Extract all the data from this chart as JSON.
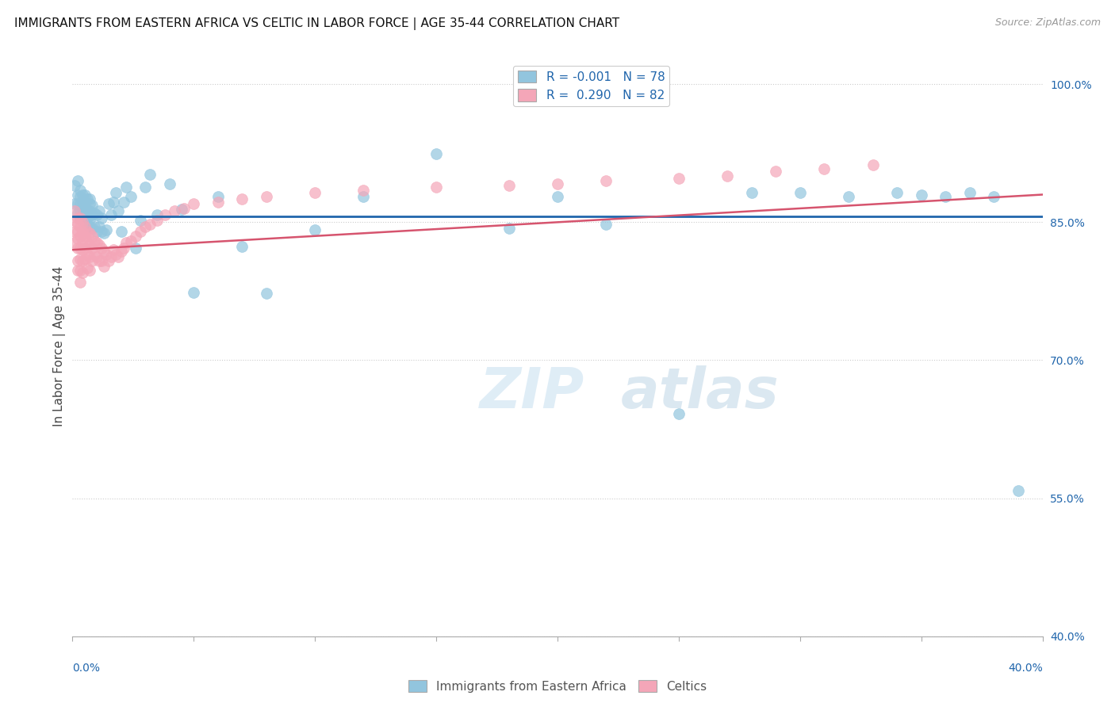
{
  "title": "IMMIGRANTS FROM EASTERN AFRICA VS CELTIC IN LABOR FORCE | AGE 35-44 CORRELATION CHART",
  "source": "Source: ZipAtlas.com",
  "ylabel": "In Labor Force | Age 35-44",
  "ylabel_right_ticks": [
    "100.0%",
    "85.0%",
    "70.0%",
    "55.0%",
    "40.0%"
  ],
  "ylabel_right_vals": [
    1.0,
    0.85,
    0.7,
    0.55,
    0.4
  ],
  "xmin": 0.0,
  "xmax": 0.4,
  "ymin": 0.4,
  "ymax": 1.03,
  "legend_r_blue": "-0.001",
  "legend_n_blue": "78",
  "legend_r_pink": "0.290",
  "legend_n_pink": "82",
  "blue_color": "#92c5de",
  "pink_color": "#f4a6b8",
  "blue_line_color": "#2166ac",
  "pink_line_color": "#d6546e",
  "watermark_zip": "ZIP",
  "watermark_atlas": "atlas",
  "blue_scatter_x": [
    0.001,
    0.001,
    0.002,
    0.002,
    0.002,
    0.002,
    0.003,
    0.003,
    0.003,
    0.003,
    0.003,
    0.004,
    0.004,
    0.004,
    0.004,
    0.005,
    0.005,
    0.005,
    0.005,
    0.005,
    0.006,
    0.006,
    0.006,
    0.006,
    0.007,
    0.007,
    0.007,
    0.007,
    0.007,
    0.008,
    0.008,
    0.008,
    0.009,
    0.009,
    0.01,
    0.01,
    0.011,
    0.011,
    0.012,
    0.012,
    0.013,
    0.014,
    0.015,
    0.016,
    0.017,
    0.018,
    0.019,
    0.02,
    0.021,
    0.022,
    0.024,
    0.026,
    0.028,
    0.03,
    0.032,
    0.035,
    0.04,
    0.045,
    0.05,
    0.06,
    0.07,
    0.08,
    0.1,
    0.12,
    0.15,
    0.18,
    0.2,
    0.22,
    0.25,
    0.28,
    0.3,
    0.32,
    0.34,
    0.35,
    0.36,
    0.37,
    0.38,
    0.39
  ],
  "blue_scatter_y": [
    0.87,
    0.89,
    0.86,
    0.87,
    0.88,
    0.895,
    0.855,
    0.862,
    0.87,
    0.878,
    0.885,
    0.858,
    0.865,
    0.873,
    0.88,
    0.85,
    0.858,
    0.865,
    0.872,
    0.88,
    0.848,
    0.855,
    0.863,
    0.875,
    0.845,
    0.853,
    0.862,
    0.87,
    0.875,
    0.843,
    0.858,
    0.868,
    0.845,
    0.86,
    0.84,
    0.858,
    0.845,
    0.862,
    0.84,
    0.855,
    0.838,
    0.842,
    0.87,
    0.858,
    0.872,
    0.882,
    0.862,
    0.84,
    0.872,
    0.888,
    0.878,
    0.822,
    0.852,
    0.888,
    0.902,
    0.858,
    0.892,
    0.864,
    0.774,
    0.878,
    0.824,
    0.773,
    0.842,
    0.878,
    0.924,
    0.843,
    0.878,
    0.848,
    0.642,
    0.882,
    0.882,
    0.878,
    0.882,
    0.88,
    0.878,
    0.882,
    0.878,
    0.558
  ],
  "pink_scatter_x": [
    0.001,
    0.001,
    0.001,
    0.001,
    0.002,
    0.002,
    0.002,
    0.002,
    0.002,
    0.002,
    0.002,
    0.003,
    0.003,
    0.003,
    0.003,
    0.003,
    0.003,
    0.003,
    0.004,
    0.004,
    0.004,
    0.004,
    0.004,
    0.004,
    0.005,
    0.005,
    0.005,
    0.005,
    0.006,
    0.006,
    0.006,
    0.006,
    0.007,
    0.007,
    0.007,
    0.007,
    0.008,
    0.008,
    0.008,
    0.009,
    0.009,
    0.01,
    0.01,
    0.011,
    0.011,
    0.012,
    0.012,
    0.013,
    0.013,
    0.014,
    0.015,
    0.016,
    0.017,
    0.018,
    0.019,
    0.02,
    0.021,
    0.022,
    0.024,
    0.026,
    0.028,
    0.03,
    0.032,
    0.035,
    0.038,
    0.042,
    0.046,
    0.05,
    0.06,
    0.07,
    0.08,
    0.1,
    0.12,
    0.15,
    0.18,
    0.2,
    0.22,
    0.25,
    0.27,
    0.29,
    0.31,
    0.33
  ],
  "pink_scatter_y": [
    0.852,
    0.862,
    0.84,
    0.828,
    0.855,
    0.848,
    0.84,
    0.832,
    0.822,
    0.808,
    0.798,
    0.855,
    0.845,
    0.835,
    0.822,
    0.81,
    0.798,
    0.785,
    0.85,
    0.84,
    0.83,
    0.82,
    0.808,
    0.795,
    0.845,
    0.835,
    0.822,
    0.81,
    0.84,
    0.828,
    0.815,
    0.8,
    0.838,
    0.825,
    0.812,
    0.798,
    0.835,
    0.822,
    0.808,
    0.83,
    0.815,
    0.828,
    0.812,
    0.825,
    0.808,
    0.822,
    0.808,
    0.818,
    0.802,
    0.815,
    0.808,
    0.812,
    0.82,
    0.815,
    0.812,
    0.818,
    0.822,
    0.828,
    0.83,
    0.835,
    0.84,
    0.845,
    0.848,
    0.852,
    0.858,
    0.862,
    0.865,
    0.87,
    0.872,
    0.875,
    0.878,
    0.882,
    0.885,
    0.888,
    0.89,
    0.892,
    0.895,
    0.898,
    0.9,
    0.905,
    0.908,
    0.912
  ]
}
